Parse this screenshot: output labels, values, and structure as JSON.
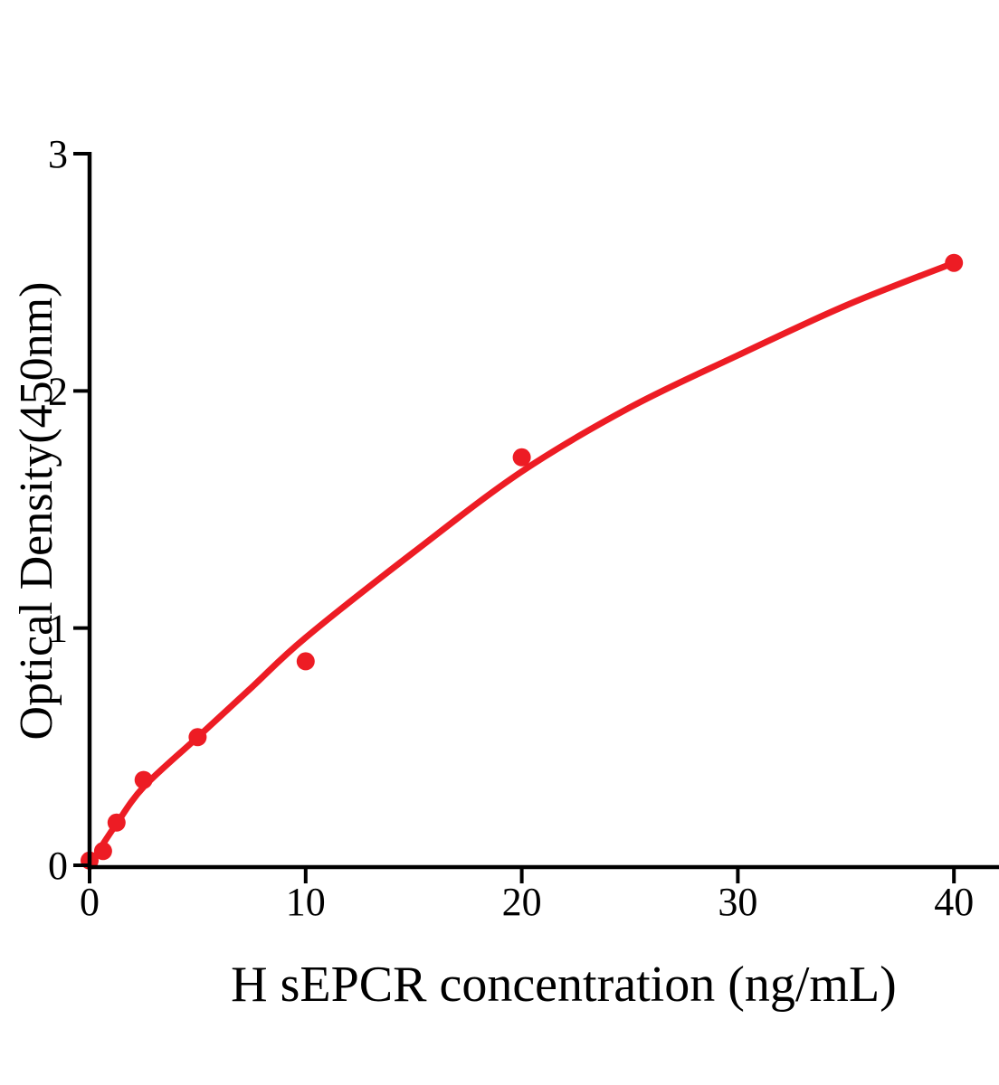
{
  "figure": {
    "background": "#FFFFFF"
  },
  "chart_data": {
    "type": "scatter",
    "title": "",
    "xlabel": "H sEPCR concentration (ng/mL)",
    "ylabel": "Optical Density(450nm)",
    "xlim": [
      0,
      42
    ],
    "ylim": [
      0,
      3
    ],
    "grid": false,
    "legend_position": "none",
    "x_ticks": {
      "values": [
        0,
        10,
        20,
        30,
        40
      ],
      "labels": [
        "0",
        "10",
        "20",
        "30",
        "40"
      ]
    },
    "y_ticks": {
      "values": [
        0,
        1,
        2,
        3
      ],
      "labels": [
        "0",
        "1",
        "2",
        "3"
      ]
    },
    "colors": {
      "points": "#ED1C24",
      "curve": "#ED1C24",
      "axis": "#000000"
    },
    "series": [
      {
        "name": "standard-points",
        "type": "scatter",
        "x": [
          0,
          0.625,
          1.25,
          2.5,
          5,
          10,
          20,
          40
        ],
        "y": [
          0.02,
          0.06,
          0.18,
          0.36,
          0.54,
          0.86,
          1.72,
          2.54
        ]
      },
      {
        "name": "fitted-curve",
        "type": "line",
        "x": [
          0,
          0.625,
          1.25,
          2.5,
          5,
          7.5,
          10,
          15,
          20,
          25,
          30,
          35,
          40
        ],
        "y": [
          0,
          0.09,
          0.175,
          0.33,
          0.54,
          0.75,
          0.96,
          1.32,
          1.66,
          1.93,
          2.15,
          2.36,
          2.54
        ]
      }
    ]
  }
}
